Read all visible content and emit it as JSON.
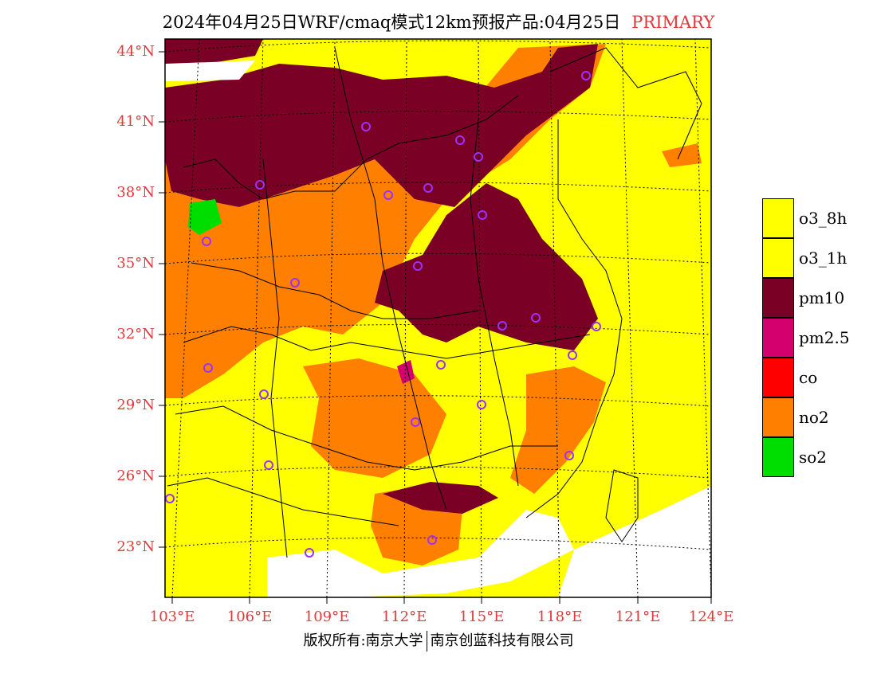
{
  "title": "2024年04月25日WRF/cmaq模式12km预报产品:04月25日",
  "title_tag": "PRIMARY",
  "latitude_labels": [
    "44°N",
    "41°N",
    "38°N",
    "35°N",
    "32°N",
    "29°N",
    "26°N",
    "23°N"
  ],
  "longitude_labels": [
    "103°E",
    "106°E",
    "109°E",
    "112°E",
    "115°E",
    "118°E",
    "121°E",
    "124°E"
  ],
  "legend": [
    {
      "label": "o3_8h",
      "color": "#ffff00"
    },
    {
      "label": "o3_1h",
      "color": "#ffff00"
    },
    {
      "label": "pm10",
      "color": "#7a0025"
    },
    {
      "label": "pm2.5",
      "color": "#d4006e"
    },
    {
      "label": "co",
      "color": "#ff0000"
    },
    {
      "label": "no2",
      "color": "#ff8000"
    },
    {
      "label": "so2",
      "color": "#00dd00"
    }
  ],
  "copyright": {
    "left": "版权所有:南京大学",
    "right": "南京创蓝科技有限公司"
  },
  "colors": {
    "label_red": "#e03a3a",
    "ocean_land": "#ffff00",
    "pm10": "#7a0025",
    "no2": "#ff8000",
    "so2": "#00dd00",
    "station": "#9b30ff"
  }
}
